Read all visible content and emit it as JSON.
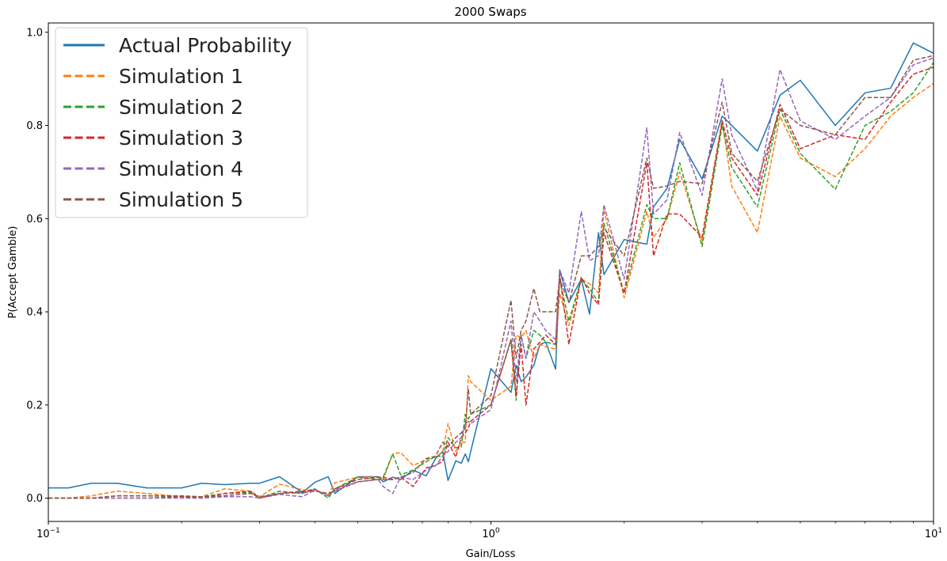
{
  "chart_data": {
    "type": "line",
    "title": "2000 Swaps",
    "xlabel": "Gain/Loss",
    "ylabel": "P(Accept Gamble)",
    "xscale": "log",
    "xlim": [
      0.1,
      10
    ],
    "ylim": [
      -0.05,
      1.02
    ],
    "yticks": [
      0.0,
      0.2,
      0.4,
      0.6,
      0.8,
      1.0
    ],
    "ytick_labels": [
      "0.0",
      "0.2",
      "0.4",
      "0.6",
      "0.8",
      "1.0"
    ],
    "xtick_labels": [
      {
        "base": "10",
        "exp": "−1"
      },
      {
        "base": "10",
        "exp": "0"
      },
      {
        "base": "10",
        "exp": "1"
      }
    ],
    "grid": false,
    "legend_position": "top-left",
    "x": [
      0.1,
      0.111,
      0.125,
      0.143,
      0.167,
      0.2,
      0.222,
      0.25,
      0.286,
      0.3,
      0.333,
      0.375,
      0.4,
      0.429,
      0.444,
      0.5,
      0.556,
      0.571,
      0.6,
      0.625,
      0.667,
      0.714,
      0.75,
      0.778,
      0.8,
      0.833,
      0.857,
      0.875,
      0.889,
      0.9,
      1.0,
      1.11,
      1.14,
      1.17,
      1.2,
      1.25,
      1.29,
      1.33,
      1.4,
      1.43,
      1.5,
      1.6,
      1.67,
      1.75,
      1.8,
      2.0,
      2.25,
      2.33,
      2.5,
      2.67,
      3.0,
      3.33,
      3.5,
      4.0,
      4.5,
      5.0,
      6.0,
      7.0,
      8.0,
      9.0,
      10.0
    ],
    "series": [
      {
        "name": "Actual Probability",
        "color": "#1f77b4",
        "style": "solid",
        "values": [
          0.022,
          0.022,
          0.032,
          0.032,
          0.022,
          0.022,
          0.032,
          0.029,
          0.032,
          0.032,
          0.046,
          0.012,
          0.034,
          0.046,
          0.01,
          0.046,
          0.046,
          0.035,
          0.045,
          0.04,
          0.06,
          0.048,
          0.085,
          0.1,
          0.038,
          0.08,
          0.075,
          0.095,
          0.078,
          0.1,
          0.278,
          0.227,
          0.285,
          0.25,
          0.26,
          0.285,
          0.33,
          0.335,
          0.277,
          0.49,
          0.42,
          0.47,
          0.395,
          0.57,
          0.48,
          0.555,
          0.545,
          0.625,
          0.665,
          0.77,
          0.685,
          0.82,
          0.8,
          0.745,
          0.865,
          0.897,
          0.8,
          0.87,
          0.88,
          0.977,
          0.955
        ]
      },
      {
        "name": "Simulation 1",
        "color": "#ff7f0e",
        "style": "dashed",
        "values": [
          0.0,
          0.0,
          0.005,
          0.015,
          0.01,
          0.003,
          0.003,
          0.02,
          0.015,
          0.003,
          0.03,
          0.018,
          0.018,
          0.008,
          0.033,
          0.045,
          0.045,
          0.04,
          0.095,
          0.098,
          0.07,
          0.083,
          0.088,
          0.1,
          0.16,
          0.1,
          0.12,
          0.12,
          0.263,
          0.25,
          0.21,
          0.24,
          0.35,
          0.345,
          0.36,
          0.3,
          0.33,
          0.325,
          0.32,
          0.44,
          0.37,
          0.47,
          0.46,
          0.44,
          0.62,
          0.43,
          0.615,
          0.56,
          0.6,
          0.7,
          0.55,
          0.81,
          0.67,
          0.57,
          0.82,
          0.73,
          0.69,
          0.75,
          0.82,
          0.86,
          0.89
        ]
      },
      {
        "name": "Simulation 2",
        "color": "#2ca02c",
        "style": "dashed",
        "values": [
          0.0,
          0.0,
          0.0,
          0.005,
          0.005,
          0.003,
          0.003,
          0.01,
          0.012,
          0.0,
          0.015,
          0.01,
          0.02,
          0.0,
          0.02,
          0.045,
          0.04,
          0.045,
          0.095,
          0.05,
          0.06,
          0.078,
          0.09,
          0.09,
          0.13,
          0.108,
          0.11,
          0.18,
          0.17,
          0.18,
          0.2,
          0.34,
          0.21,
          0.35,
          0.3,
          0.36,
          0.35,
          0.335,
          0.33,
          0.47,
          0.38,
          0.47,
          0.45,
          0.42,
          0.59,
          0.44,
          0.63,
          0.6,
          0.6,
          0.72,
          0.54,
          0.8,
          0.71,
          0.625,
          0.835,
          0.74,
          0.663,
          0.8,
          0.83,
          0.87,
          0.935
        ]
      },
      {
        "name": "Simulation 3",
        "color": "#d62728",
        "style": "dashed",
        "values": [
          0.0,
          0.0,
          0.0,
          0.0,
          0.0,
          0.003,
          0.0,
          0.01,
          0.015,
          0.0,
          0.01,
          0.015,
          0.018,
          0.005,
          0.02,
          0.04,
          0.045,
          0.045,
          0.04,
          0.045,
          0.025,
          0.065,
          0.07,
          0.08,
          0.12,
          0.088,
          0.13,
          0.14,
          0.15,
          0.165,
          0.2,
          0.34,
          0.22,
          0.33,
          0.2,
          0.32,
          0.335,
          0.35,
          0.33,
          0.48,
          0.33,
          0.475,
          0.44,
          0.415,
          0.57,
          0.44,
          0.72,
          0.52,
          0.61,
          0.61,
          0.56,
          0.81,
          0.73,
          0.65,
          0.845,
          0.75,
          0.78,
          0.77,
          0.85,
          0.91,
          0.925
        ]
      },
      {
        "name": "Simulation 4",
        "color": "#9467bd",
        "style": "dashed",
        "values": [
          0.0,
          0.0,
          0.0,
          0.0,
          0.0,
          0.0,
          0.0,
          0.003,
          0.003,
          0.0,
          0.008,
          0.003,
          0.018,
          0.005,
          0.018,
          0.035,
          0.04,
          0.025,
          0.01,
          0.045,
          0.04,
          0.06,
          0.07,
          0.09,
          0.1,
          0.12,
          0.13,
          0.16,
          0.165,
          0.16,
          0.19,
          0.38,
          0.25,
          0.35,
          0.3,
          0.4,
          0.38,
          0.36,
          0.34,
          0.49,
          0.44,
          0.615,
          0.51,
          0.52,
          0.63,
          0.47,
          0.795,
          0.61,
          0.64,
          0.785,
          0.65,
          0.9,
          0.78,
          0.66,
          0.92,
          0.81,
          0.77,
          0.82,
          0.86,
          0.93,
          0.945
        ]
      },
      {
        "name": "Simulation 5",
        "color": "#8c564b",
        "style": "dashed",
        "values": [
          0.0,
          0.0,
          0.0,
          0.005,
          0.005,
          0.005,
          0.003,
          0.005,
          0.01,
          0.003,
          0.01,
          0.012,
          0.015,
          0.01,
          0.015,
          0.035,
          0.04,
          0.04,
          0.04,
          0.045,
          0.055,
          0.085,
          0.09,
          0.12,
          0.11,
          0.13,
          0.14,
          0.15,
          0.235,
          0.18,
          0.22,
          0.425,
          0.3,
          0.36,
          0.38,
          0.45,
          0.4,
          0.4,
          0.4,
          0.47,
          0.42,
          0.52,
          0.52,
          0.54,
          0.58,
          0.52,
          0.73,
          0.665,
          0.67,
          0.68,
          0.675,
          0.85,
          0.74,
          0.68,
          0.835,
          0.8,
          0.78,
          0.86,
          0.86,
          0.94,
          0.95
        ]
      }
    ]
  }
}
